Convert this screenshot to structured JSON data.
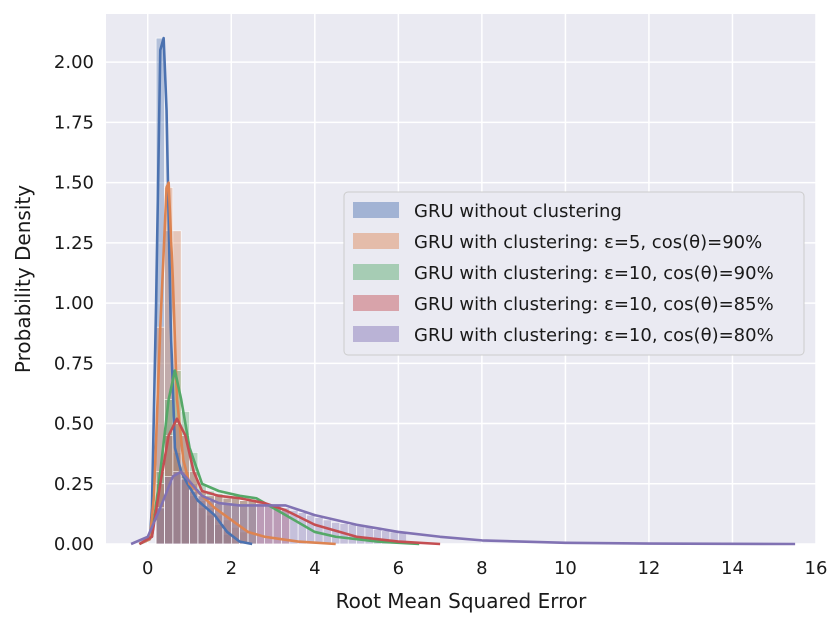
{
  "chart_data": {
    "type": "histogram+kde",
    "xlabel": "Root Mean Squared Error",
    "ylabel": "Probability Density",
    "xlim": [
      -1,
      16
    ],
    "ylim": [
      0,
      2.2
    ],
    "xticks": [
      0,
      2,
      4,
      6,
      8,
      10,
      12,
      14,
      16
    ],
    "xtick_labels": [
      "0",
      "2",
      "4",
      "6",
      "8",
      "10",
      "12",
      "14",
      "16"
    ],
    "yticks": [
      0,
      0.25,
      0.5,
      0.75,
      1.0,
      1.25,
      1.5,
      1.75,
      2.0
    ],
    "ytick_labels": [
      "0.00",
      "0.25",
      "0.50",
      "0.75",
      "1.00",
      "1.25",
      "1.50",
      "1.75",
      "2.00"
    ],
    "grid": true,
    "legend_position": "center-right",
    "series": [
      {
        "name": "GRU without clustering",
        "color": "#4c72b0",
        "kde": [
          [
            -0.2,
            0
          ],
          [
            0.05,
            0.02
          ],
          [
            0.1,
            0.15
          ],
          [
            0.2,
            1.0
          ],
          [
            0.3,
            2.05
          ],
          [
            0.38,
            2.1
          ],
          [
            0.45,
            1.8
          ],
          [
            0.55,
            0.9
          ],
          [
            0.65,
            0.4
          ],
          [
            0.8,
            0.3
          ],
          [
            0.95,
            0.25
          ],
          [
            1.2,
            0.18
          ],
          [
            1.6,
            0.12
          ],
          [
            1.9,
            0.05
          ],
          [
            2.2,
            0.01
          ],
          [
            2.5,
            0
          ]
        ],
        "hist_bins": [
          [
            0.3,
            2.1
          ],
          [
            0.5,
            1.3
          ],
          [
            0.7,
            0.38
          ],
          [
            0.9,
            0.28
          ],
          [
            1.1,
            0.2
          ],
          [
            1.3,
            0.15
          ],
          [
            1.5,
            0.12
          ],
          [
            1.7,
            0.08
          ],
          [
            1.9,
            0.04
          ]
        ]
      },
      {
        "name": "GRU with clustering: ε=5, cos(θ)=90%",
        "color": "#dd8452",
        "kde": [
          [
            -0.2,
            0
          ],
          [
            0.05,
            0.02
          ],
          [
            0.15,
            0.2
          ],
          [
            0.3,
            0.9
          ],
          [
            0.45,
            1.48
          ],
          [
            0.5,
            1.5
          ],
          [
            0.6,
            1.1
          ],
          [
            0.7,
            0.6
          ],
          [
            0.85,
            0.35
          ],
          [
            1.0,
            0.25
          ],
          [
            1.3,
            0.2
          ],
          [
            1.6,
            0.15
          ],
          [
            2.0,
            0.1
          ],
          [
            2.4,
            0.05
          ],
          [
            2.8,
            0.03
          ],
          [
            3.2,
            0.02
          ],
          [
            3.6,
            0.01
          ],
          [
            4.5,
            0
          ]
        ],
        "hist_bins": [
          [
            0.3,
            0.9
          ],
          [
            0.5,
            1.48
          ],
          [
            0.7,
            1.3
          ],
          [
            0.9,
            0.3
          ],
          [
            1.1,
            0.25
          ],
          [
            1.3,
            0.18
          ],
          [
            1.5,
            0.15
          ],
          [
            1.7,
            0.12
          ],
          [
            1.9,
            0.1
          ],
          [
            2.1,
            0.07
          ],
          [
            2.3,
            0.05
          ]
        ]
      },
      {
        "name": "GRU with clustering: ε=10, cos(θ)=90%",
        "color": "#55a868",
        "kde": [
          [
            -0.2,
            0
          ],
          [
            0.1,
            0.03
          ],
          [
            0.3,
            0.3
          ],
          [
            0.5,
            0.6
          ],
          [
            0.65,
            0.72
          ],
          [
            0.8,
            0.6
          ],
          [
            1.0,
            0.4
          ],
          [
            1.3,
            0.25
          ],
          [
            1.7,
            0.22
          ],
          [
            2.2,
            0.2
          ],
          [
            2.6,
            0.19
          ],
          [
            3.0,
            0.15
          ],
          [
            3.5,
            0.1
          ],
          [
            4.0,
            0.05
          ],
          [
            4.5,
            0.03
          ],
          [
            5.5,
            0.01
          ],
          [
            6.5,
            0
          ]
        ],
        "hist_bins": [
          [
            0.3,
            0.3
          ],
          [
            0.5,
            0.6
          ],
          [
            0.7,
            0.72
          ],
          [
            0.9,
            0.55
          ],
          [
            1.1,
            0.38
          ],
          [
            1.3,
            0.25
          ],
          [
            1.5,
            0.22
          ],
          [
            1.7,
            0.21
          ],
          [
            1.9,
            0.2
          ],
          [
            2.1,
            0.2
          ],
          [
            2.3,
            0.18
          ],
          [
            2.5,
            0.18
          ]
        ]
      },
      {
        "name": "GRU with clustering: ε=10, cos(θ)=85%",
        "color": "#c44e52",
        "kde": [
          [
            -0.2,
            0
          ],
          [
            0.1,
            0.03
          ],
          [
            0.3,
            0.25
          ],
          [
            0.5,
            0.45
          ],
          [
            0.7,
            0.52
          ],
          [
            0.9,
            0.45
          ],
          [
            1.1,
            0.3
          ],
          [
            1.3,
            0.22
          ],
          [
            1.7,
            0.2
          ],
          [
            2.2,
            0.19
          ],
          [
            2.8,
            0.17
          ],
          [
            3.3,
            0.14
          ],
          [
            4.0,
            0.08
          ],
          [
            5.0,
            0.03
          ],
          [
            6.0,
            0.01
          ],
          [
            7.0,
            0
          ]
        ],
        "hist_bins": [
          [
            0.3,
            0.25
          ],
          [
            0.5,
            0.45
          ],
          [
            0.7,
            0.5
          ],
          [
            0.9,
            0.45
          ],
          [
            1.1,
            0.3
          ],
          [
            1.3,
            0.22
          ],
          [
            1.5,
            0.2
          ],
          [
            1.7,
            0.2
          ],
          [
            1.9,
            0.19
          ],
          [
            2.1,
            0.19
          ],
          [
            2.3,
            0.18
          ],
          [
            2.5,
            0.18
          ],
          [
            2.7,
            0.17
          ],
          [
            2.9,
            0.16
          ],
          [
            3.1,
            0.15
          ],
          [
            3.3,
            0.14
          ]
        ]
      },
      {
        "name": "GRU with clustering: ε=10, cos(θ)=80%",
        "color": "#8172b3",
        "kde": [
          [
            -0.4,
            0
          ],
          [
            0,
            0.03
          ],
          [
            0.3,
            0.15
          ],
          [
            0.6,
            0.28
          ],
          [
            0.8,
            0.3
          ],
          [
            1.0,
            0.26
          ],
          [
            1.3,
            0.2
          ],
          [
            1.7,
            0.17
          ],
          [
            2.2,
            0.16
          ],
          [
            2.8,
            0.16
          ],
          [
            3.3,
            0.16
          ],
          [
            4.0,
            0.12
          ],
          [
            5.0,
            0.08
          ],
          [
            6.0,
            0.05
          ],
          [
            7.0,
            0.03
          ],
          [
            8.0,
            0.015
          ],
          [
            10.0,
            0.005
          ],
          [
            12.0,
            0.002
          ],
          [
            15.5,
            0
          ]
        ],
        "hist_bins": [
          [
            0.3,
            0.15
          ],
          [
            0.5,
            0.28
          ],
          [
            0.7,
            0.3
          ],
          [
            0.9,
            0.27
          ],
          [
            1.1,
            0.22
          ],
          [
            1.3,
            0.2
          ],
          [
            1.5,
            0.18
          ],
          [
            1.7,
            0.17
          ],
          [
            1.9,
            0.17
          ],
          [
            2.1,
            0.16
          ],
          [
            2.3,
            0.16
          ],
          [
            2.5,
            0.16
          ],
          [
            2.7,
            0.16
          ],
          [
            2.9,
            0.16
          ],
          [
            3.1,
            0.16
          ],
          [
            3.3,
            0.15
          ],
          [
            3.5,
            0.14
          ],
          [
            3.7,
            0.13
          ],
          [
            3.9,
            0.12
          ],
          [
            4.1,
            0.11
          ],
          [
            4.3,
            0.1
          ],
          [
            4.5,
            0.09
          ],
          [
            4.7,
            0.085
          ],
          [
            4.9,
            0.08
          ],
          [
            5.1,
            0.075
          ],
          [
            5.3,
            0.07
          ],
          [
            5.5,
            0.06
          ],
          [
            5.7,
            0.055
          ],
          [
            5.9,
            0.05
          ],
          [
            6.1,
            0.045
          ]
        ]
      }
    ]
  }
}
